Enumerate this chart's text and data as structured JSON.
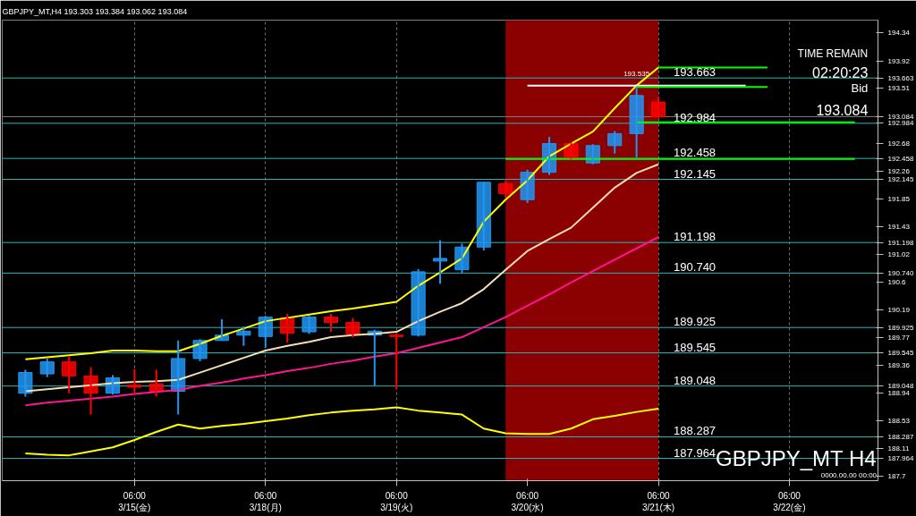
{
  "chart_data": {
    "type": "candlestick",
    "title": "GBPJPY_MT,H4  193.303 193.384 193.062 193.084",
    "categories": [
      null,
      null,
      null,
      null,
      null,
      "06:00\n3/15(金)",
      null,
      null,
      null,
      null,
      null,
      "06:00\n3/18(月)",
      null,
      null,
      null,
      null,
      null,
      "06:00\n3/19(火)",
      null,
      null,
      null,
      null,
      null,
      "06:00\n3/20(水)",
      null,
      null,
      null,
      null,
      null,
      "06:00\n3/21(木)",
      null,
      null,
      null,
      null,
      null,
      "06:00\n3/22(金)",
      null,
      null,
      null
    ],
    "ohlc": [
      [
        188.94,
        189.29,
        188.89,
        189.25
      ],
      [
        189.23,
        189.46,
        189.18,
        189.41
      ],
      [
        189.41,
        189.5,
        188.94,
        189.2
      ],
      [
        189.2,
        189.33,
        188.62,
        188.94
      ],
      [
        188.94,
        189.21,
        188.92,
        189.17
      ],
      [
        189.06,
        189.3,
        188.93,
        189.03
      ],
      [
        189.08,
        189.29,
        188.89,
        188.97
      ],
      [
        188.97,
        189.73,
        188.62,
        189.46
      ],
      [
        189.46,
        189.75,
        189.42,
        189.73
      ],
      [
        189.73,
        190.05,
        189.73,
        189.81
      ],
      [
        189.81,
        189.94,
        189.65,
        189.87
      ],
      [
        189.79,
        190.1,
        189.62,
        190.08
      ],
      [
        190.07,
        190.13,
        189.7,
        189.84
      ],
      [
        189.86,
        190.1,
        189.83,
        190.08
      ],
      [
        190.08,
        190.13,
        189.86,
        190.0
      ],
      [
        190.0,
        190.07,
        189.78,
        189.83
      ],
      [
        189.81,
        189.89,
        189.05,
        189.87
      ],
      [
        189.81,
        189.84,
        189.0,
        189.79
      ],
      [
        189.81,
        190.8,
        189.79,
        190.76
      ],
      [
        190.92,
        191.23,
        190.58,
        190.96
      ],
      [
        190.79,
        191.18,
        190.73,
        191.13
      ],
      [
        191.13,
        192.1,
        191.08,
        192.1
      ],
      [
        192.08,
        192.13,
        191.87,
        191.93
      ],
      [
        191.84,
        192.29,
        191.79,
        192.25
      ],
      [
        192.25,
        192.78,
        192.21,
        192.68
      ],
      [
        192.68,
        192.7,
        192.45,
        192.47
      ],
      [
        192.39,
        192.67,
        192.37,
        192.65
      ],
      [
        192.65,
        192.87,
        192.53,
        192.83
      ],
      [
        192.83,
        193.535,
        192.47,
        193.4
      ],
      [
        193.303,
        193.384,
        193.062,
        193.084
      ],
      null,
      null,
      null,
      null,
      null,
      null,
      null,
      null,
      null
    ],
    "colors": [
      "#2196f3",
      "#2196f3",
      "#ff0000",
      "#ff0000",
      "#2196f3",
      "#ff0000",
      "#ff0000",
      "#2196f3",
      "#2196f3",
      "#2196f3",
      "#2196f3",
      "#2196f3",
      "#ff0000",
      "#2196f3",
      "#ff0000",
      "#ff0000",
      "#2196f3",
      "#ff0000",
      "#2196f3",
      "#2196f3",
      "#2196f3",
      "#2196f3",
      "#ff0000",
      "#2196f3",
      "#2196f3",
      "#ff0000",
      "#2196f3",
      "#2196f3",
      "#2196f3",
      "#ff0000",
      null,
      null,
      null,
      null,
      null,
      null,
      null,
      null,
      null
    ],
    "series": [
      {
        "type": "line",
        "color": "#ffff00",
        "values": [
          189.45,
          189.48,
          189.51,
          189.54,
          189.58,
          189.58,
          189.57,
          189.57,
          189.68,
          189.8,
          189.91,
          190.02,
          190.07,
          190.12,
          190.17,
          190.21,
          190.26,
          190.31,
          190.55,
          190.75,
          190.96,
          191.51,
          191.84,
          192.13,
          192.49,
          192.68,
          192.86,
          193.21,
          193.55,
          193.82,
          null,
          null,
          null,
          null,
          null,
          null,
          null,
          null,
          null
        ]
      },
      {
        "type": "line",
        "color": "#ffff00",
        "values": [
          188.04,
          188.02,
          188.01,
          188.07,
          188.13,
          188.24,
          188.36,
          188.47,
          188.41,
          188.45,
          188.48,
          188.52,
          188.56,
          188.61,
          188.65,
          188.68,
          188.7,
          188.73,
          188.68,
          188.65,
          188.62,
          188.41,
          188.34,
          188.33,
          188.33,
          188.41,
          188.55,
          188.6,
          188.66,
          188.71,
          null,
          null,
          null,
          null,
          null,
          null,
          null,
          null,
          null
        ]
      },
      {
        "type": "line",
        "color": "#ff1493",
        "values": [
          188.76,
          188.8,
          188.83,
          188.86,
          188.89,
          188.93,
          188.96,
          188.99,
          189.05,
          189.1,
          189.16,
          189.21,
          189.27,
          189.32,
          189.38,
          189.43,
          189.49,
          189.54,
          189.62,
          189.7,
          189.78,
          189.93,
          190.08,
          190.25,
          190.42,
          190.6,
          190.77,
          190.94,
          191.11,
          191.28,
          null,
          null,
          null,
          null,
          null,
          null,
          null,
          null,
          null
        ]
      },
      {
        "type": "line",
        "color": "#f5deb3",
        "values": [
          188.97,
          189.0,
          189.03,
          189.06,
          189.09,
          189.11,
          189.12,
          189.14,
          189.25,
          189.36,
          189.47,
          189.58,
          189.65,
          189.71,
          189.78,
          189.81,
          189.83,
          189.86,
          190.02,
          190.16,
          190.29,
          190.5,
          190.79,
          191.07,
          191.25,
          191.42,
          191.72,
          192.02,
          192.24,
          192.37,
          null,
          null,
          null,
          null,
          null,
          null,
          null,
          null,
          null
        ]
      },
      {
        "type": "line",
        "color": "#ffffff",
        "values": [
          null,
          null,
          null,
          null,
          null,
          null,
          null,
          null,
          null,
          null,
          null,
          null,
          null,
          null,
          null,
          null,
          null,
          null,
          null,
          null,
          null,
          null,
          null,
          193.55,
          193.55,
          193.55,
          193.55,
          193.55,
          193.55,
          193.55,
          193.55,
          193.55,
          193.55,
          193.55,
          null,
          null,
          null,
          null,
          null
        ]
      },
      {
        "type": "line",
        "color": "#00ff00",
        "values": [
          null,
          null,
          null,
          null,
          null,
          null,
          null,
          null,
          null,
          null,
          null,
          null,
          null,
          null,
          null,
          null,
          null,
          null,
          null,
          null,
          null,
          null,
          null,
          null,
          null,
          null,
          null,
          null,
          null,
          193.82,
          193.82,
          193.82,
          193.82,
          193.82,
          193.82,
          null,
          null,
          null,
          null
        ]
      },
      {
        "type": "line",
        "color": "#00ff00",
        "values": [
          null,
          null,
          null,
          null,
          null,
          null,
          null,
          null,
          null,
          null,
          null,
          null,
          null,
          null,
          null,
          null,
          null,
          null,
          null,
          null,
          null,
          null,
          null,
          null,
          null,
          null,
          null,
          null,
          193.53,
          193.53,
          193.53,
          193.53,
          193.53,
          193.53,
          193.53,
          null,
          null,
          null,
          null
        ]
      },
      {
        "type": "line",
        "color": "#00ff00",
        "values": [
          null,
          null,
          null,
          null,
          null,
          null,
          null,
          null,
          null,
          null,
          null,
          null,
          null,
          null,
          null,
          null,
          null,
          null,
          null,
          null,
          null,
          null,
          null,
          null,
          null,
          null,
          null,
          null,
          193.0,
          193.0,
          193.0,
          193.0,
          193.0,
          193.0,
          193.0,
          193.0,
          193.0,
          193.0,
          193.0
        ]
      },
      {
        "type": "line",
        "color": "#00ff00",
        "values": [
          null,
          null,
          null,
          null,
          null,
          null,
          null,
          null,
          null,
          null,
          null,
          null,
          null,
          null,
          null,
          null,
          null,
          null,
          null,
          null,
          null,
          null,
          192.45,
          192.45,
          192.45,
          192.45,
          192.45,
          192.45,
          192.45,
          192.45,
          192.45,
          192.45,
          192.45,
          192.45,
          192.45,
          192.45,
          192.45,
          192.45,
          192.45
        ]
      }
    ],
    "ref_lines": [
      {
        "axis": "y",
        "value": 193.663,
        "label": "193.663",
        "color": "#2ab7b7"
      },
      {
        "axis": "y",
        "value": 193.084,
        "color": "#808080"
      },
      {
        "axis": "y",
        "value": 192.984,
        "label": "192.984",
        "color": "#2ab7b7"
      },
      {
        "axis": "y",
        "value": 192.458,
        "label": "192.458",
        "color": "#2ab7b7"
      },
      {
        "axis": "y",
        "value": 192.145,
        "label": "192.145",
        "color": "#2ab7b7"
      },
      {
        "axis": "y",
        "value": 191.198,
        "label": "191.198",
        "color": "#2ab7b7"
      },
      {
        "axis": "y",
        "value": 190.74,
        "label": "190.740",
        "color": "#2ab7b7"
      },
      {
        "axis": "y",
        "value": 189.925,
        "label": "189.925",
        "color": "#2ab7b7"
      },
      {
        "axis": "y",
        "value": 189.545,
        "label": "189.545",
        "color": "#2ab7b7"
      },
      {
        "axis": "y",
        "value": 189.048,
        "label": "189.048",
        "color": "#2ab7b7"
      },
      {
        "axis": "y",
        "value": 188.287,
        "label": "188.287",
        "color": "#2ab7b7"
      },
      {
        "axis": "y",
        "value": 187.964,
        "label": "187.964",
        "color": "#2ab7b7"
      }
    ],
    "annotations": [
      "TIME REMAIN",
      "02:20:23",
      "Bid",
      "193.084",
      "GBPJPY_MT H4",
      "0000.00.00 00:00",
      "193.535"
    ],
    "ylim": [
      187.63,
      194.53
    ],
    "yticks": [
      194.34,
      193.92,
      {
        "value": 193.663,
        "label": "193.663"
      },
      193.51,
      {
        "value": 193.084,
        "label": "193.084"
      },
      {
        "value": 192.984,
        "label": "192.984"
      },
      192.68,
      {
        "value": 192.458,
        "label": "192.458"
      },
      192.26,
      {
        "value": 192.145,
        "label": "192.145"
      },
      191.85,
      191.43,
      {
        "value": 191.198,
        "label": "191.198"
      },
      191.02,
      {
        "value": 190.74,
        "label": "190.740"
      },
      190.6,
      190.19,
      {
        "value": 189.925,
        "label": "189.925"
      },
      189.77,
      {
        "value": 189.545,
        "label": "189.545"
      },
      189.36,
      {
        "value": 189.048,
        "label": "189.048"
      },
      188.94,
      188.53,
      {
        "value": 188.287,
        "label": "188.287"
      },
      188.11,
      {
        "value": 187.964,
        "label": "187.964"
      },
      187.7
    ],
    "grid": "x"
  }
}
